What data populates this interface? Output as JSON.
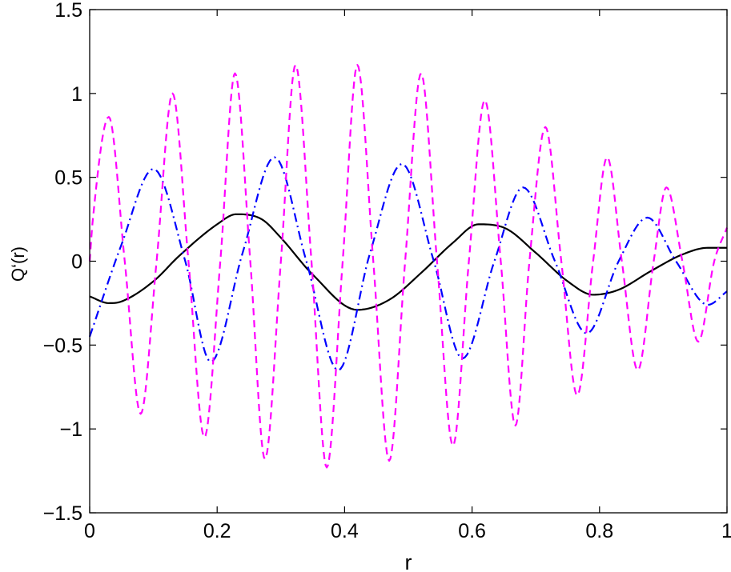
{
  "chart_data": {
    "type": "line",
    "title": "",
    "xlabel": "r",
    "ylabel": "Q‘(r)",
    "xlim": [
      0,
      1
    ],
    "ylim": [
      -1.5,
      1.5
    ],
    "xticks": [
      0,
      0.2,
      0.4,
      0.6,
      0.8,
      1
    ],
    "xtick_labels": [
      "0",
      "0.2",
      "0.4",
      "0.6",
      "0.8",
      "1"
    ],
    "yticks": [
      -1.5,
      -1,
      -0.5,
      0,
      0.5,
      1,
      1.5
    ],
    "ytick_labels": [
      "−1.5",
      "−1",
      "−0.5",
      "0",
      "0.5",
      "1",
      "1.5"
    ],
    "grid": false,
    "legend": "none",
    "series": [
      {
        "style": "solid",
        "color": "#000000",
        "x": [
          0,
          0.03,
          0.05,
          0.1,
          0.14,
          0.2,
          0.23,
          0.27,
          0.3,
          0.35,
          0.42,
          0.47,
          0.52,
          0.57,
          0.61,
          0.65,
          0.7,
          0.75,
          0.79,
          0.83,
          0.88,
          0.93,
          0.97,
          1
        ],
        "y": [
          -0.21,
          -0.25,
          -0.24,
          -0.12,
          0.03,
          0.22,
          0.28,
          0.25,
          0.14,
          -0.08,
          -0.29,
          -0.23,
          -0.07,
          0.11,
          0.22,
          0.2,
          0.05,
          -0.12,
          -0.2,
          -0.17,
          -0.06,
          0.04,
          0.08,
          0.08
        ]
      },
      {
        "style": "dashdot",
        "color": "#0000ff",
        "x": [
          0,
          0.05,
          0.1,
          0.15,
          0.19,
          0.24,
          0.29,
          0.34,
          0.39,
          0.44,
          0.49,
          0.54,
          0.585,
          0.635,
          0.68,
          0.73,
          0.78,
          0.83,
          0.875,
          0.92,
          0.97,
          1
        ],
        "y": [
          -0.45,
          0.1,
          0.55,
          0.0,
          -0.6,
          0.05,
          0.62,
          0.0,
          -0.65,
          0.05,
          0.58,
          0.0,
          -0.58,
          0.0,
          0.44,
          0.0,
          -0.43,
          0.0,
          0.26,
          0.0,
          -0.26,
          -0.18
        ]
      },
      {
        "style": "dashed",
        "color": "#ff00ff",
        "x": [
          0,
          0.005,
          0.03,
          0.055,
          0.08,
          0.105,
          0.13,
          0.155,
          0.18,
          0.205,
          0.228,
          0.252,
          0.275,
          0.3,
          0.323,
          0.348,
          0.372,
          0.397,
          0.42,
          0.445,
          0.47,
          0.495,
          0.52,
          0.545,
          0.57,
          0.595,
          0.62,
          0.645,
          0.668,
          0.69,
          0.715,
          0.74,
          0.765,
          0.79,
          0.812,
          0.835,
          0.86,
          0.885,
          0.905,
          0.93,
          0.955,
          0.98,
          1
        ],
        "y": [
          0.0,
          0.25,
          0.86,
          0.0,
          -0.91,
          0.0,
          1.0,
          0.0,
          -1.05,
          0.0,
          1.12,
          0.0,
          -1.18,
          0.0,
          1.17,
          0.0,
          -1.23,
          0.0,
          1.17,
          0.0,
          -1.19,
          0.0,
          1.12,
          0.0,
          -1.1,
          0.0,
          0.96,
          0.0,
          -0.98,
          0.0,
          0.8,
          0.0,
          -0.8,
          0.0,
          0.62,
          0.0,
          -0.65,
          0.0,
          0.44,
          0.0,
          -0.48,
          0.0,
          0.2
        ]
      }
    ]
  }
}
